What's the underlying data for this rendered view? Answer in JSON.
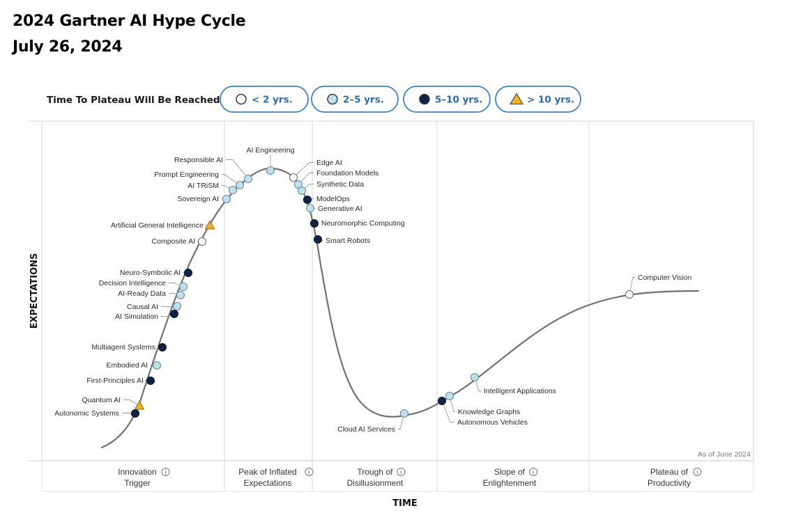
{
  "header": {
    "title": "2024 Gartner AI Hype Cycle",
    "subtitle": "July 26, 2024"
  },
  "legend": {
    "label": "Time To Plateau Will Be Reached:",
    "items": [
      {
        "label": "< 2 yrs.",
        "marker": "circle",
        "color": "#ffffff"
      },
      {
        "label": "2–5 yrs.",
        "marker": "circle",
        "color": "#bfe1ec"
      },
      {
        "label": "5–10 yrs.",
        "marker": "circle",
        "color": "#0f2344"
      },
      {
        "label": "> 10 yrs.",
        "marker": "triangle",
        "color": "#f0b323"
      }
    ]
  },
  "colors": {
    "under2": "#ffffff",
    "two_five": "#bfe1ec",
    "five_ten": "#0f2344",
    "over10": "#f0b323",
    "curve": "#707070",
    "pill_border": "#3d82c4"
  },
  "chart_data": {
    "type": "scatter",
    "title": "",
    "xlabel": "TIME",
    "ylabel": "EXPECTATIONS",
    "note": "As of June 2024",
    "phases": [
      {
        "line1": "Innovation",
        "line2": "Trigger"
      },
      {
        "line1": "Peak of Inflated",
        "line2": "Expectations"
      },
      {
        "line1": "Trough of",
        "line2": "Disillusionment"
      },
      {
        "line1": "Slope of",
        "line2": "Enlightenment"
      },
      {
        "line1": "Plateau of",
        "line2": "Productivity"
      }
    ],
    "technologies": [
      {
        "name": "Autonomic Systems",
        "category": "5-10"
      },
      {
        "name": "Quantum AI",
        "category": ">10"
      },
      {
        "name": "First-Principles AI",
        "category": "5-10"
      },
      {
        "name": "Embodied AI",
        "category": "2-5"
      },
      {
        "name": "Multiagent Systems",
        "category": "5-10"
      },
      {
        "name": "AI Simulation",
        "category": "5-10"
      },
      {
        "name": "Causal AI",
        "category": "2-5"
      },
      {
        "name": "AI-Ready Data",
        "category": "2-5"
      },
      {
        "name": "Decision Intelligence",
        "category": "2-5"
      },
      {
        "name": "Neuro-Symbolic AI",
        "category": "5-10"
      },
      {
        "name": "Composite AI",
        "category": "<2"
      },
      {
        "name": "Artificial General Intelligence",
        "category": ">10"
      },
      {
        "name": "Sovereign AI",
        "category": "2-5"
      },
      {
        "name": "AI TRiSM",
        "category": "2-5"
      },
      {
        "name": "Prompt Engineering",
        "category": "2-5"
      },
      {
        "name": "Responsible AI",
        "category": "2-5"
      },
      {
        "name": "AI Engineering",
        "category": "2-5"
      },
      {
        "name": "Edge AI",
        "category": "<2"
      },
      {
        "name": "Foundation Models",
        "category": "2-5"
      },
      {
        "name": "Synthetic Data",
        "category": "2-5"
      },
      {
        "name": "ModelOps",
        "category": "5-10"
      },
      {
        "name": "Generative AI",
        "category": "2-5"
      },
      {
        "name": "Neuromorphic Computing",
        "category": "5-10"
      },
      {
        "name": "Smart Robots",
        "category": "5-10"
      },
      {
        "name": "Cloud AI Services",
        "category": "2-5"
      },
      {
        "name": "Autonomous Vehicles",
        "category": "5-10"
      },
      {
        "name": "Knowledge Graphs",
        "category": "2-5"
      },
      {
        "name": "Intelligent Applications",
        "category": "2-5"
      },
      {
        "name": "Computer Vision",
        "category": "<2"
      }
    ]
  }
}
